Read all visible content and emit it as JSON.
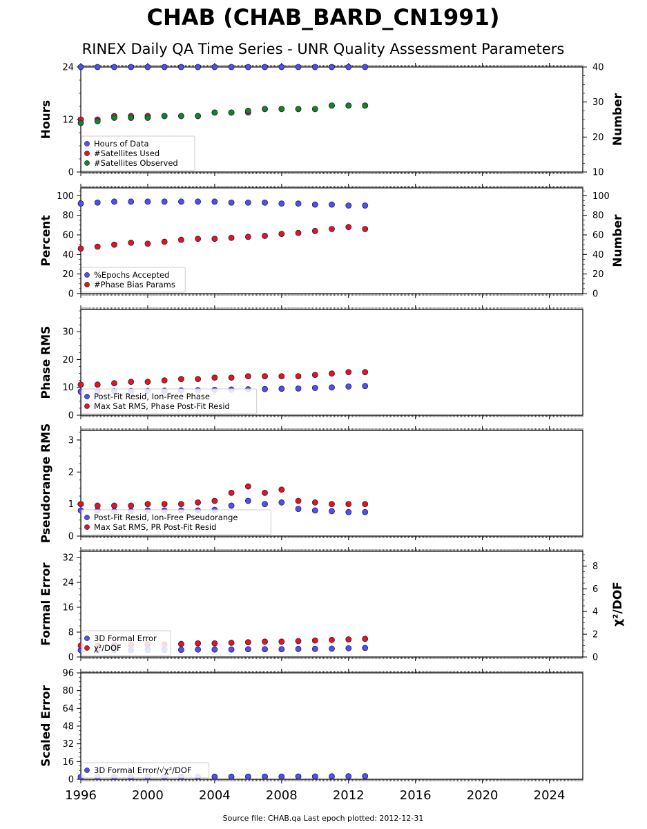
{
  "title": "CHAB (CHAB_BARD_CN1991)",
  "subtitle": "RINEX Daily QA Time Series - UNR Quality Assessment Parameters",
  "footer": "Source file: CHAB.qa Last epoch plotted: 2012-12-31",
  "colors": {
    "blue": "#5050ee",
    "red": "#ee1111",
    "green": "#118811",
    "navy": "#1a1a66"
  },
  "chart_data": [
    {
      "type": "scatter",
      "xlim": [
        1996,
        2026
      ],
      "xticks": [
        1996,
        2000,
        2004,
        2008,
        2012,
        2016,
        2020,
        2024
      ],
      "xtick_labels_shown": false,
      "ylabel": "Hours",
      "ylim": [
        0,
        24
      ],
      "yticks": [
        0,
        12,
        24
      ],
      "y2label": "Number",
      "y2lim": [
        10,
        40
      ],
      "y2ticks": [
        10,
        20,
        30,
        40
      ],
      "legend": "lower-left",
      "series": [
        {
          "name": "Hours of Data",
          "axis": "left",
          "color": "#5050ee",
          "x": [
            1996.0,
            1997.0,
            1998.0,
            1999.0,
            2000.0,
            2001.0,
            2002.0,
            2003.0,
            2004.0,
            2005.0,
            2006.0,
            2007.0,
            2008.0,
            2009.0,
            2010.0,
            2011.0,
            2012.0,
            2012.99
          ],
          "y": [
            24,
            24,
            24,
            24,
            24,
            24,
            24,
            24,
            24,
            24,
            24,
            24,
            24,
            24,
            24,
            24,
            24,
            24
          ]
        },
        {
          "name": "#Satellites Used",
          "axis": "right",
          "color": "#ee1111",
          "x": [
            1996.0,
            1997.0,
            1998.0,
            1999.0,
            2000.0,
            2001.0,
            2002.0,
            2003.0,
            2004.0,
            2005.0,
            2006.0,
            2007.0,
            2008.0,
            2009.0,
            2010.0,
            2011.0,
            2012.0,
            2012.99
          ],
          "y": [
            25,
            25,
            26,
            26,
            26,
            26,
            26,
            26,
            27,
            27,
            27,
            28,
            28,
            28,
            28,
            29,
            29,
            29
          ]
        },
        {
          "name": "#Satellites Observed",
          "axis": "right",
          "color": "#118811",
          "x": [
            1996.0,
            1997.0,
            1998.0,
            1999.0,
            2000.0,
            2001.0,
            2002.0,
            2003.0,
            2004.0,
            2005.0,
            2006.0,
            2007.0,
            2008.0,
            2009.0,
            2010.0,
            2011.0,
            2012.0,
            2012.99
          ],
          "y": [
            24,
            24.5,
            25.5,
            25.5,
            25.5,
            26,
            26,
            26,
            27,
            27,
            27.5,
            28,
            28,
            28,
            28,
            29,
            29,
            29
          ]
        }
      ]
    },
    {
      "type": "scatter",
      "xlim": [
        1996,
        2026
      ],
      "xticks": [
        1996,
        2000,
        2004,
        2008,
        2012,
        2016,
        2020,
        2024
      ],
      "xtick_labels_shown": false,
      "ylabel": "Percent",
      "ylim": [
        0,
        108
      ],
      "yticks": [
        0,
        20,
        40,
        60,
        80,
        100
      ],
      "y2label": "Number",
      "y2lim": [
        0,
        108
      ],
      "y2ticks": [
        0,
        20,
        40,
        60,
        80,
        100
      ],
      "legend": "lower-left",
      "series": [
        {
          "name": "%Epochs Accepted",
          "axis": "left",
          "color": "#5050ee",
          "x": [
            1996.0,
            1997.0,
            1998.0,
            1999.0,
            2000.0,
            2001.0,
            2002.0,
            2003.0,
            2004.0,
            2005.0,
            2006.0,
            2007.0,
            2008.0,
            2009.0,
            2010.0,
            2011.0,
            2012.0,
            2012.99
          ],
          "y": [
            92,
            93,
            94,
            94,
            94,
            94,
            94,
            94,
            94,
            93,
            93,
            93,
            92,
            92,
            91,
            91,
            90,
            90
          ]
        },
        {
          "name": "#Phase Bias Params",
          "axis": "right",
          "color": "#ee1111",
          "x": [
            1996.0,
            1997.0,
            1998.0,
            1999.0,
            2000.0,
            2001.0,
            2002.0,
            2003.0,
            2004.0,
            2005.0,
            2006.0,
            2007.0,
            2008.0,
            2009.0,
            2010.0,
            2011.0,
            2012.0,
            2012.99
          ],
          "y": [
            46,
            48,
            50,
            52,
            51,
            53,
            55,
            56,
            56,
            57,
            58,
            59,
            61,
            62,
            64,
            66,
            68,
            66
          ]
        }
      ]
    },
    {
      "type": "scatter",
      "xlim": [
        1996,
        2026
      ],
      "xticks": [
        1996,
        2000,
        2004,
        2008,
        2012,
        2016,
        2020,
        2024
      ],
      "xtick_labels_shown": false,
      "ylabel": "Phase RMS",
      "ylim": [
        0,
        38
      ],
      "yticks": [
        0,
        10,
        20,
        30
      ],
      "legend": "lower-left",
      "series": [
        {
          "name": "Post-Fit Resid, Ion-Free Phase",
          "color": "#5050ee",
          "x": [
            1996.0,
            1997.0,
            1998.0,
            1999.0,
            2000.0,
            2001.0,
            2002.0,
            2003.0,
            2004.0,
            2005.0,
            2006.0,
            2007.0,
            2008.0,
            2009.0,
            2010.0,
            2011.0,
            2012.0,
            2012.99
          ],
          "y": [
            8.5,
            8.5,
            8.6,
            8.7,
            8.7,
            8.8,
            8.9,
            9.0,
            9.1,
            9.2,
            9.3,
            9.4,
            9.5,
            9.6,
            9.8,
            10.0,
            10.3,
            10.5
          ]
        },
        {
          "name": "Max Sat RMS, Phase Post-Fit Resid",
          "color": "#ee1111",
          "x": [
            1996.0,
            1997.0,
            1998.0,
            1999.0,
            2000.0,
            2001.0,
            2002.0,
            2003.0,
            2004.0,
            2005.0,
            2006.0,
            2007.0,
            2008.0,
            2009.0,
            2010.0,
            2011.0,
            2012.0,
            2012.99
          ],
          "y": [
            11,
            11,
            11.5,
            12,
            12,
            12.5,
            13,
            13,
            13.5,
            13.5,
            14,
            14,
            14,
            14,
            14.5,
            15,
            15.5,
            15.5
          ]
        }
      ]
    },
    {
      "type": "scatter",
      "xlim": [
        1996,
        2026
      ],
      "xticks": [
        1996,
        2000,
        2004,
        2008,
        2012,
        2016,
        2020,
        2024
      ],
      "xtick_labels_shown": false,
      "ylabel": "Pseudorange RMS",
      "ylim": [
        0,
        3.3
      ],
      "yticks": [
        0,
        1,
        2,
        3
      ],
      "legend": "lower-left",
      "series": [
        {
          "name": "Post-Fit Resid, Ion-Free Pseudorange",
          "color": "#5050ee",
          "x": [
            1996.0,
            1997.0,
            1998.0,
            1999.0,
            2000.0,
            2001.0,
            2002.0,
            2003.0,
            2004.0,
            2005.0,
            2006.0,
            2007.0,
            2008.0,
            2009.0,
            2010.0,
            2011.0,
            2012.0,
            2012.99
          ],
          "y": [
            0.8,
            0.8,
            0.78,
            0.78,
            0.8,
            0.8,
            0.8,
            0.8,
            0.82,
            0.95,
            1.1,
            1.0,
            1.05,
            0.85,
            0.8,
            0.78,
            0.75,
            0.75
          ]
        },
        {
          "name": "Max Sat RMS, PR Post-Fit Resid",
          "color": "#ee1111",
          "x": [
            1996.0,
            1997.0,
            1998.0,
            1999.0,
            2000.0,
            2001.0,
            2002.0,
            2003.0,
            2004.0,
            2005.0,
            2006.0,
            2007.0,
            2008.0,
            2009.0,
            2010.0,
            2011.0,
            2012.0,
            2012.99
          ],
          "y": [
            1.0,
            0.95,
            0.95,
            0.95,
            1.0,
            1.0,
            1.0,
            1.05,
            1.1,
            1.35,
            1.55,
            1.35,
            1.45,
            1.1,
            1.05,
            1.0,
            1.0,
            1.0
          ]
        }
      ]
    },
    {
      "type": "scatter",
      "xlim": [
        1996,
        2026
      ],
      "xticks": [
        1996,
        2000,
        2004,
        2008,
        2012,
        2016,
        2020,
        2024
      ],
      "xtick_labels_shown": false,
      "ylabel": "Formal Error",
      "ylim": [
        0,
        34
      ],
      "yticks": [
        0,
        8,
        16,
        24,
        32
      ],
      "y2label": "χ²/DOF",
      "y2lim": [
        0,
        9.3
      ],
      "y2ticks": [
        0,
        2,
        4,
        6,
        8
      ],
      "legend": "lower-left",
      "series": [
        {
          "name": "3D Formal Error",
          "axis": "left",
          "color": "#5050ee",
          "x": [
            1996.0,
            1997.0,
            1998.0,
            1999.0,
            2000.0,
            2001.0,
            2002.0,
            2003.0,
            2004.0,
            2005.0,
            2006.0,
            2007.0,
            2008.0,
            2009.0,
            2010.0,
            2011.0,
            2012.0,
            2012.99
          ],
          "y": [
            2.2,
            2.2,
            2.2,
            2.2,
            2.3,
            2.3,
            2.3,
            2.4,
            2.4,
            2.4,
            2.5,
            2.5,
            2.5,
            2.6,
            2.6,
            2.7,
            2.8,
            2.9
          ]
        },
        {
          "name": "χ²/DOF",
          "axis": "right",
          "color": "#ee1111",
          "x": [
            1996.0,
            1997.0,
            1998.0,
            1999.0,
            2000.0,
            2001.0,
            2002.0,
            2003.0,
            2004.0,
            2005.0,
            2006.0,
            2007.0,
            2008.0,
            2009.0,
            2010.0,
            2011.0,
            2012.0,
            2012.99
          ],
          "y": [
            1.0,
            1.0,
            1.05,
            1.05,
            1.1,
            1.1,
            1.15,
            1.2,
            1.2,
            1.25,
            1.3,
            1.35,
            1.35,
            1.4,
            1.45,
            1.5,
            1.55,
            1.6
          ]
        }
      ]
    },
    {
      "type": "scatter",
      "xlim": [
        1996,
        2026
      ],
      "xticks": [
        1996,
        2000,
        2004,
        2008,
        2012,
        2016,
        2020,
        2024
      ],
      "xtick_labels": [
        "1996",
        "2000",
        "2004",
        "2008",
        "2012",
        "2016",
        "2020",
        "2024"
      ],
      "ylabel": "Scaled Error",
      "ylim": [
        0,
        96
      ],
      "yticks": [
        0,
        16,
        32,
        48,
        64,
        80,
        96
      ],
      "legend": "lower-left",
      "series": [
        {
          "name": "3D Formal Error/√χ²/DOF",
          "color": "#5050ee",
          "x": [
            1996.0,
            1997.0,
            1998.0,
            1999.0,
            2000.0,
            2001.0,
            2002.0,
            2003.0,
            2004.0,
            2005.0,
            2006.0,
            2007.0,
            2008.0,
            2009.0,
            2010.0,
            2011.0,
            2012.0,
            2012.99
          ],
          "y": [
            2.0,
            2.0,
            2.1,
            2.1,
            2.2,
            2.2,
            2.2,
            2.3,
            2.3,
            2.3,
            2.4,
            2.4,
            2.4,
            2.5,
            2.5,
            2.6,
            2.7,
            2.8
          ]
        }
      ]
    }
  ]
}
